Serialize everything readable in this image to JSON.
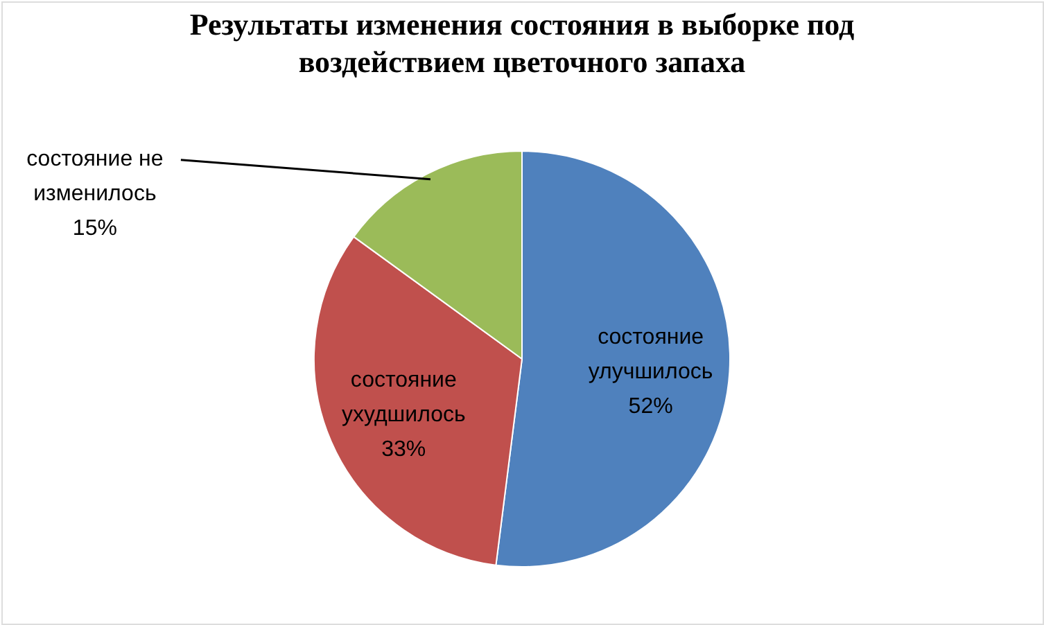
{
  "chart_data": {
    "type": "pie",
    "title": "Результаты изменения состояния в выборке под воздействием цветочного запаха",
    "categories": [
      "состояние улучшилось",
      "состояние ухудшилось",
      "состояние не изменилось"
    ],
    "values": [
      52,
      33,
      15
    ],
    "colors": [
      "#4f81bd",
      "#c0504d",
      "#9bbb59"
    ],
    "value_labels": [
      "52%",
      "33%",
      "15%"
    ]
  }
}
